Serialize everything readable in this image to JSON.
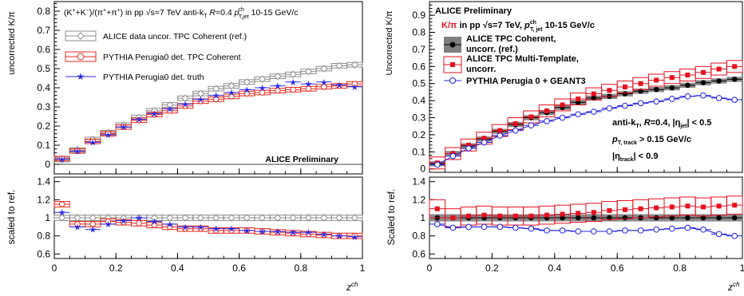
{
  "chart_data": [
    {
      "type": "scatter",
      "panel": "left",
      "header": "(K⁺+K⁻)/(π⁺+π⁻) in pp √s=7 TeV anti-kT R=0.4 pT,jet ch 10-15 GeV/c",
      "header_parts": {
        "lhs": "(K",
        "plus": "+",
        "k2": "+K",
        "minus": "−",
        "mid": ")/(π",
        "p2": "+π",
        "rhs": ") in pp",
        "sqrt": "√",
        "s": "s=7 TeV anti-k",
        "T": "T",
        "R": " R",
        "Req": "=0.4",
        "p": " p",
        "ch": "ch",
        "Tjet": "T,jet",
        "range": " 10-15 GeV/c"
      },
      "ylabel": "uncorrected K/π",
      "ratio_ylabel": "scaled to ref.",
      "xlabel": "z",
      "xlabel_sup": "ch",
      "watermark": "ALICE Preliminary",
      "xlim": [
        0,
        1
      ],
      "ylim": [
        -0.05,
        0.85
      ],
      "ratio_ylim": [
        0.55,
        1.45
      ],
      "xticks": [
        "0",
        "0.2",
        "0.4",
        "0.6",
        "0.8",
        "1"
      ],
      "yticks": [
        "0",
        "0.1",
        "0.2",
        "0.3",
        "0.4",
        "0.5",
        "0.6",
        "0.7",
        "0.8"
      ],
      "ratio_yticks": [
        "0.6",
        "0.8",
        "1",
        "1.2",
        "1.4"
      ],
      "x": [
        0.025,
        0.075,
        0.125,
        0.175,
        0.225,
        0.275,
        0.325,
        0.375,
        0.425,
        0.475,
        0.525,
        0.575,
        0.625,
        0.675,
        0.725,
        0.775,
        0.825,
        0.875,
        0.925,
        0.975
      ],
      "series": [
        {
          "name": "ALICE data uncor. TPC Coherent (ref.)",
          "color": "#8c8c8c",
          "marker": "diamond",
          "values": [
            0.025,
            0.075,
            0.13,
            0.165,
            0.205,
            0.245,
            0.28,
            0.31,
            0.345,
            0.37,
            0.395,
            0.41,
            0.43,
            0.445,
            0.46,
            0.47,
            0.485,
            0.5,
            0.515,
            0.52
          ],
          "ratio": [
            1.0,
            1.0,
            1.0,
            1.0,
            1.0,
            1.0,
            1.0,
            1.0,
            1.0,
            1.0,
            1.0,
            1.0,
            1.0,
            1.0,
            1.0,
            1.0,
            1.0,
            1.0,
            1.0,
            1.0
          ]
        },
        {
          "name": "PYTHIA Perugia0 det. TPC Coherent",
          "color": "#e8281e",
          "marker": "circle-open",
          "values": [
            0.03,
            0.07,
            0.12,
            0.16,
            0.195,
            0.23,
            0.26,
            0.28,
            0.305,
            0.33,
            0.34,
            0.355,
            0.37,
            0.375,
            0.385,
            0.39,
            0.395,
            0.405,
            0.41,
            0.42
          ],
          "ratio": [
            1.15,
            0.93,
            0.93,
            0.96,
            0.95,
            0.94,
            0.92,
            0.9,
            0.88,
            0.88,
            0.86,
            0.86,
            0.86,
            0.85,
            0.84,
            0.83,
            0.82,
            0.81,
            0.8,
            0.8
          ]
        },
        {
          "name": "PYTHIA Perugia0 det. truth",
          "color": "#2b2be8",
          "marker": "star",
          "values": [
            0.028,
            0.068,
            0.115,
            0.155,
            0.195,
            0.235,
            0.265,
            0.29,
            0.315,
            0.34,
            0.36,
            0.375,
            0.39,
            0.4,
            0.41,
            0.43,
            0.42,
            0.43,
            0.415,
            0.405
          ],
          "ratio": [
            1.06,
            0.9,
            0.87,
            0.93,
            0.97,
            1.0,
            0.96,
            0.93,
            0.9,
            0.9,
            0.88,
            0.88,
            0.86,
            0.85,
            0.85,
            0.84,
            0.84,
            0.82,
            0.8,
            0.79
          ]
        }
      ]
    },
    {
      "type": "scatter",
      "panel": "right",
      "ylabel": "Uncorrected K/π",
      "ratio_ylabel": "Scaled to ref.",
      "xlabel": "z",
      "xlabel_sup": "ch",
      "header": "ALICE Preliminary",
      "subheader_parts": {
        "kpi": "K/π",
        "rest": " in pp ",
        "sqrt": "√",
        "s": "s=7 TeV, ",
        "p": "p",
        "ch": "ch",
        "Tjet": "T, jet",
        "range": "  10-15 GeV/c"
      },
      "annotations": {
        "line1": {
          "a": "anti-k",
          "T": "T",
          "b": ", ",
          "R": "R",
          "c": "=0.4, |η",
          "jet": "jet",
          "d": "| < 0.5"
        },
        "line2": {
          "p": "p",
          "sub": "T, track",
          "rest": " > 0.15 GeV/c"
        },
        "line3": {
          "a": "|η",
          "sub": "track",
          "b": "| < 0.9"
        }
      },
      "xlim": [
        0,
        1
      ],
      "ylim": [
        -0.02,
        0.98
      ],
      "ratio_ylim": [
        0.55,
        1.45
      ],
      "xticks": [
        "0",
        "0.2",
        "0.4",
        "0.6",
        "0.8",
        "1"
      ],
      "yticks": [
        "0",
        "0.1",
        "0.2",
        "0.3",
        "0.4",
        "0.5",
        "0.6",
        "0.7",
        "0.8",
        "0.9"
      ],
      "ratio_yticks": [
        "0.6",
        "0.8",
        "1",
        "1.2",
        "1.4"
      ],
      "x": [
        0.025,
        0.075,
        0.125,
        0.175,
        0.225,
        0.275,
        0.325,
        0.375,
        0.425,
        0.475,
        0.525,
        0.575,
        0.625,
        0.675,
        0.725,
        0.775,
        0.825,
        0.875,
        0.925,
        0.975
      ],
      "series": [
        {
          "name_lines": [
            "ALICE TPC Coherent,",
            "uncorr. (ref.)"
          ],
          "color": "#000000",
          "marker": "circle-filled",
          "values": [
            0.03,
            0.09,
            0.135,
            0.175,
            0.22,
            0.26,
            0.3,
            0.33,
            0.36,
            0.39,
            0.415,
            0.425,
            0.44,
            0.455,
            0.465,
            0.475,
            0.49,
            0.505,
            0.515,
            0.525
          ],
          "ratio": [
            1.0,
            1.0,
            1.0,
            1.0,
            1.0,
            1.0,
            1.0,
            1.0,
            1.0,
            1.0,
            1.0,
            1.0,
            1.0,
            1.0,
            1.0,
            1.0,
            1.0,
            1.0,
            1.0,
            1.0
          ]
        },
        {
          "name_lines": [
            "ALICE TPC Multi-Template,",
            "uncorr."
          ],
          "color": "#e8101e",
          "marker": "square-filled",
          "values": [
            0.035,
            0.09,
            0.14,
            0.18,
            0.225,
            0.265,
            0.305,
            0.34,
            0.375,
            0.41,
            0.44,
            0.46,
            0.48,
            0.5,
            0.52,
            0.535,
            0.55,
            0.565,
            0.585,
            0.6
          ],
          "ratio": [
            1.1,
            1.0,
            1.02,
            1.03,
            1.02,
            1.02,
            1.02,
            1.03,
            1.04,
            1.05,
            1.06,
            1.08,
            1.09,
            1.1,
            1.11,
            1.12,
            1.13,
            1.12,
            1.13,
            1.14
          ]
        },
        {
          "name": "PYTHIA Perugia 0 + GEANT3",
          "color": "#2020e0",
          "marker": "circle-open",
          "values": [
            0.025,
            0.075,
            0.12,
            0.155,
            0.195,
            0.225,
            0.255,
            0.28,
            0.3,
            0.32,
            0.335,
            0.355,
            0.37,
            0.385,
            0.395,
            0.41,
            0.425,
            0.43,
            0.415,
            0.405
          ],
          "ratio": [
            0.93,
            0.89,
            0.9,
            0.9,
            0.9,
            0.89,
            0.88,
            0.86,
            0.86,
            0.85,
            0.85,
            0.85,
            0.86,
            0.86,
            0.87,
            0.88,
            0.89,
            0.87,
            0.82,
            0.8
          ]
        }
      ]
    }
  ]
}
